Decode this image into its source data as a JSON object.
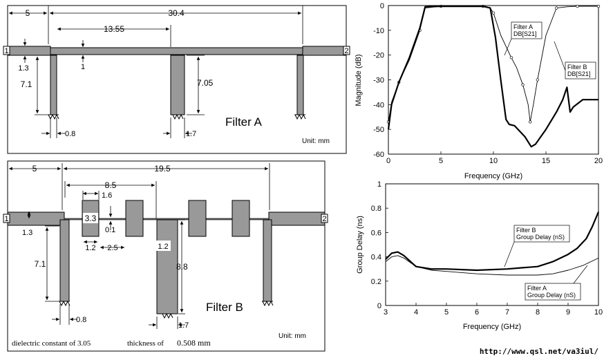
{
  "filter_a": {
    "title": "Filter A",
    "unit": "Unit: mm",
    "ports": [
      "1",
      "2"
    ],
    "dims": {
      "left_offset": "5",
      "total_length": "30.4",
      "stub_spacing": "13.55",
      "line_width_outer": "1.3",
      "line_width_inner": "1",
      "stub1_length": "7.1",
      "stub2_length": "7.05",
      "stub1_width": "0.8",
      "stub2_width": "1.7"
    }
  },
  "filter_b": {
    "title": "Filter B",
    "unit": "Unit: mm",
    "ports": [
      "1",
      "2"
    ],
    "dims": {
      "left_offset": "5",
      "total_length": "19.5",
      "pitch": "8.5",
      "pad_length": "1.6",
      "pad_width": "3.3",
      "line_width_outer": "1.3",
      "gap_line": "0.1",
      "pad_width_b": "1.2",
      "pad_spacing": "2.5",
      "stub_width_b": "1.2",
      "stub1_length": "7.1",
      "stub2_length": "8.8",
      "stub1_width": "0.8",
      "stub2_width": "1.7"
    },
    "dielectric_note": "dielectric constant of 3.05",
    "thickness_note": "thickness of",
    "thickness_value": "0.508 mm"
  },
  "chart_data": [
    {
      "type": "line",
      "title": "",
      "xlabel": "Frequency (GHz)",
      "ylabel": "Magnitude (dB)",
      "xlim": [
        0,
        20
      ],
      "ylim": [
        -60,
        0
      ],
      "xticks": [
        "0",
        "5",
        "10",
        "15",
        "20"
      ],
      "yticks": [
        "0",
        "-10",
        "-20",
        "-30",
        "-40",
        "-50",
        "-60"
      ],
      "grid": false,
      "series": [
        {
          "name": "Filter A DB[S21]",
          "x": [
            0,
            0.3,
            1,
            2,
            3,
            3.5,
            5,
            7,
            9,
            9.7,
            10,
            10.7,
            11.7,
            12.2,
            12.8,
            13.3,
            13.5,
            13.8,
            14.2,
            15,
            16,
            17,
            18,
            19,
            20
          ],
          "y": [
            -47,
            -39,
            -31,
            -22,
            -10,
            -1,
            -0.3,
            -0.3,
            -0.3,
            -1,
            -3,
            -12,
            -21,
            -25,
            -32,
            -40,
            -47,
            -40,
            -30,
            -12,
            -1,
            -0.5,
            -0.3,
            -0.3,
            -0.3
          ]
        },
        {
          "name": "Filter B DB[S21]",
          "x": [
            0,
            0.3,
            1,
            2,
            3,
            3.5,
            5,
            7,
            9,
            9.7,
            10.2,
            10.7,
            11.2,
            11.5,
            12,
            13,
            13.6,
            14,
            15,
            16,
            16.6,
            17,
            17.3,
            17.6,
            18.5,
            20
          ],
          "y": [
            -50,
            -40,
            -31,
            -21,
            -9,
            -0.5,
            -0.3,
            -0.3,
            -0.3,
            -1,
            -13,
            -30,
            -46,
            -48,
            -48.5,
            -53,
            -57,
            -56,
            -50,
            -43,
            -38,
            -33,
            -43,
            -41,
            -38,
            -38
          ]
        }
      ],
      "annotations": [
        {
          "lines": [
            "Filter A",
            "DB[S21]"
          ]
        },
        {
          "lines": [
            "Filter B",
            "DB[S21]"
          ]
        }
      ]
    },
    {
      "type": "line",
      "title": "",
      "xlabel": "Frequency (GHz)",
      "ylabel": "Group Delay (ns)",
      "xlim": [
        3,
        10
      ],
      "ylim": [
        0,
        1
      ],
      "xticks": [
        "3",
        "4",
        "5",
        "6",
        "7",
        "8",
        "9",
        "10"
      ],
      "yticks": [
        "0",
        "0.2",
        "0.4",
        "0.6",
        "0.8",
        "1"
      ],
      "grid": false,
      "series": [
        {
          "name": "Filter B Group Delay (nS)",
          "x": [
            3,
            3.2,
            3.4,
            3.6,
            4,
            4.5,
            5,
            6,
            7,
            7.5,
            8,
            8.5,
            9,
            9.3,
            9.6,
            9.8,
            10
          ],
          "y": [
            0.38,
            0.43,
            0.44,
            0.41,
            0.32,
            0.3,
            0.3,
            0.29,
            0.3,
            0.31,
            0.32,
            0.36,
            0.42,
            0.47,
            0.55,
            0.65,
            0.77
          ]
        },
        {
          "name": "Filter A Group Delay (nS)",
          "x": [
            3,
            3.2,
            3.4,
            3.6,
            4,
            4.5,
            5,
            6,
            7,
            8,
            8.5,
            9,
            9.5,
            10
          ],
          "y": [
            0.36,
            0.4,
            0.41,
            0.39,
            0.32,
            0.29,
            0.28,
            0.26,
            0.25,
            0.25,
            0.26,
            0.29,
            0.33,
            0.39
          ]
        }
      ],
      "annotations": [
        {
          "lines": [
            "Filter B",
            "Group Delay (nS)"
          ]
        },
        {
          "lines": [
            "Filter A",
            "Group Delay (nS)"
          ]
        }
      ]
    }
  ],
  "footer_url": "http://www.qsl.net/va3iul/"
}
